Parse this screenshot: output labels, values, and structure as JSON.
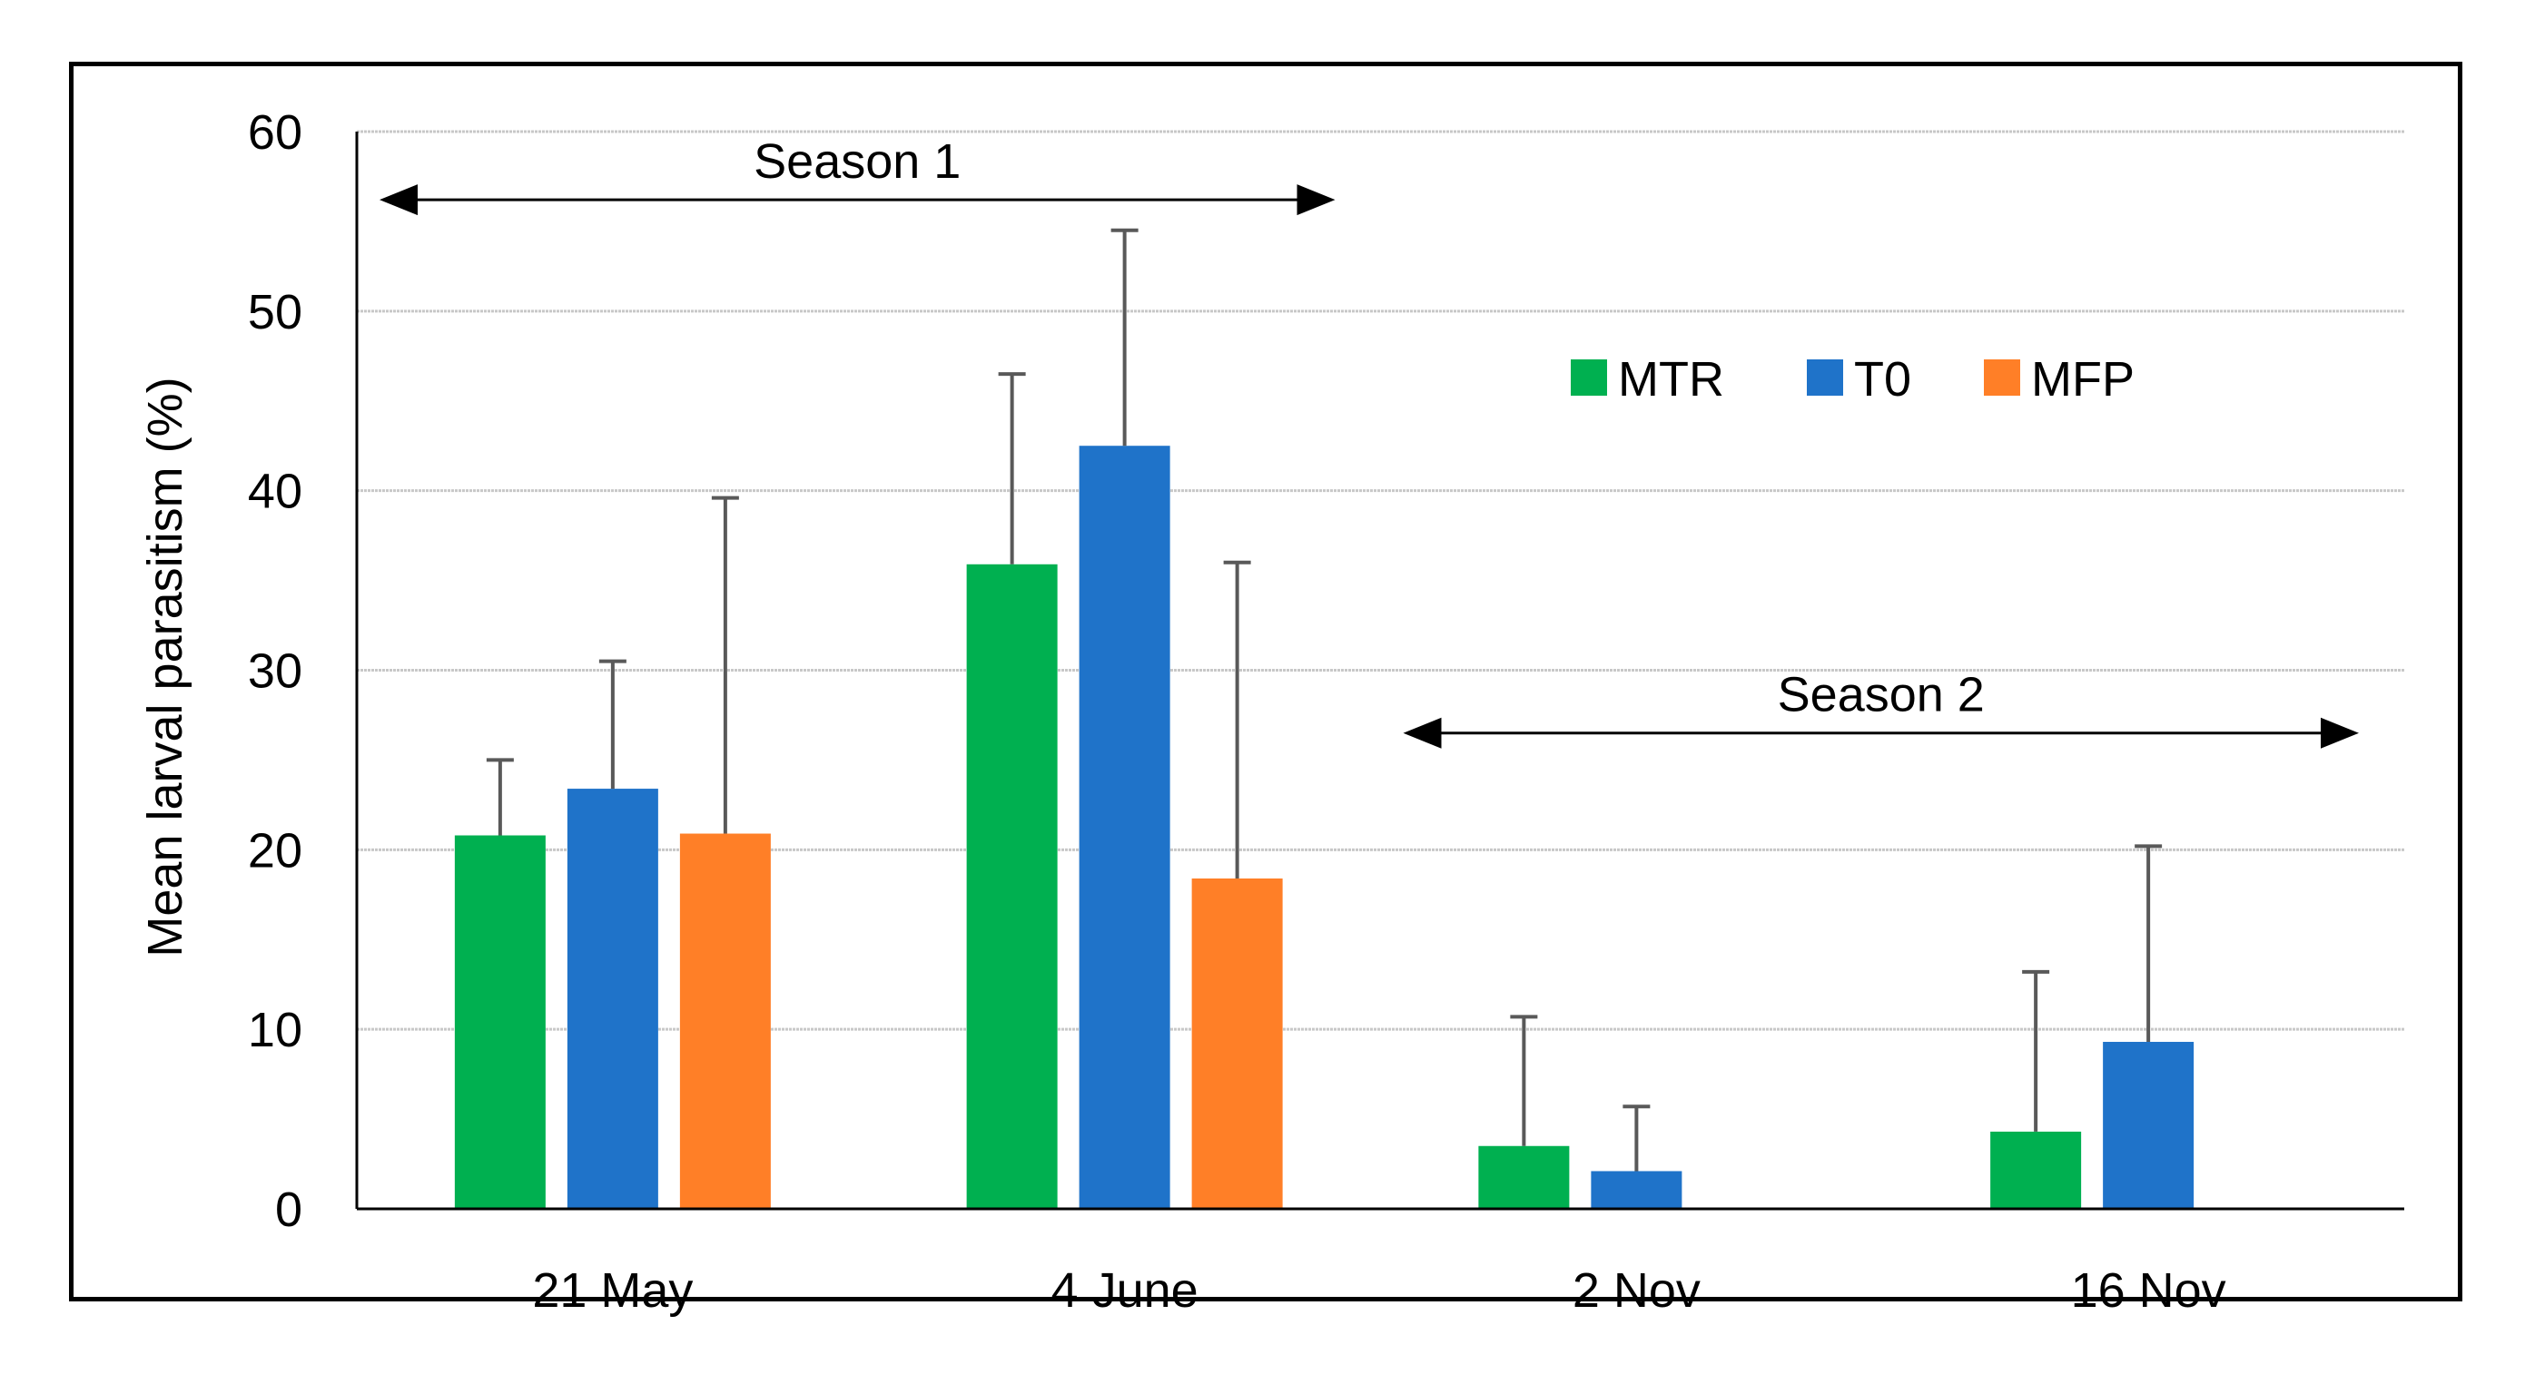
{
  "chart_data": {
    "type": "bar",
    "title": "",
    "xlabel": "",
    "ylabel": "Mean larval parasitism (%)",
    "ylim": [
      0,
      60
    ],
    "yticks": [
      0,
      10,
      20,
      30,
      40,
      50,
      60
    ],
    "ytick_labels": [
      "0",
      "10",
      "20",
      "30",
      "40",
      "50",
      "60"
    ],
    "grid": true,
    "legend_position": "top-right",
    "categories": [
      "21 May",
      "4 June",
      "2 Nov",
      "16 Nov"
    ],
    "series": [
      {
        "name": "MTR",
        "color": "#00B050",
        "values": [
          20.8,
          35.9,
          3.5,
          4.3
        ],
        "error_upper": [
          25.0,
          46.5,
          10.7,
          13.2
        ]
      },
      {
        "name": "T0",
        "color": "#1F73C9",
        "values": [
          23.4,
          42.5,
          2.1,
          9.3
        ],
        "error_upper": [
          30.5,
          54.5,
          5.7,
          20.2
        ]
      },
      {
        "name": "MFP",
        "color": "#FF7F27",
        "values": [
          20.9,
          18.4,
          null,
          null
        ],
        "error_upper": [
          39.6,
          36.0,
          null,
          null
        ]
      }
    ],
    "annotations": [
      {
        "label": "Season 1",
        "from_category": "21 May",
        "to_category": "4 June",
        "y": 56.2
      },
      {
        "label": "Season 2",
        "from_category": "2 Nov",
        "to_category": "16 Nov",
        "y": 26.5
      }
    ]
  }
}
